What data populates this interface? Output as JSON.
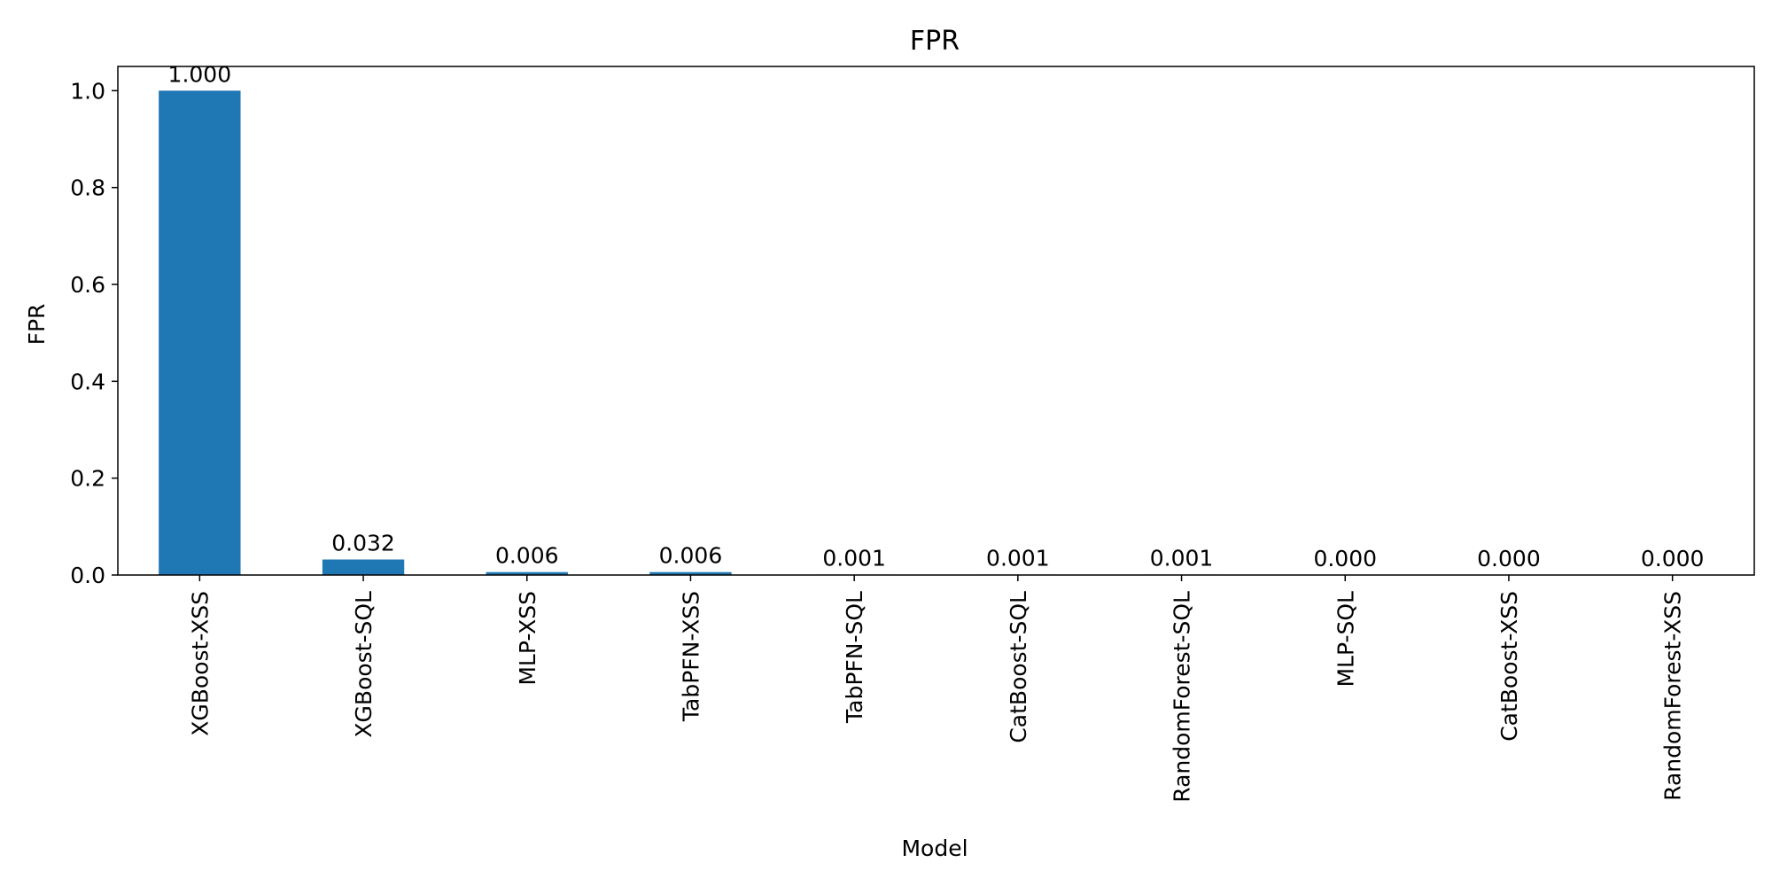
{
  "chart_data": {
    "type": "bar",
    "title": "FPR",
    "xlabel": "Model",
    "ylabel": "FPR",
    "categories": [
      "XGBoost-XSS",
      "XGBoost-SQL",
      "MLP-XSS",
      "TabPFN-XSS",
      "TabPFN-SQL",
      "CatBoost-SQL",
      "RandomForest-SQL",
      "MLP-SQL",
      "CatBoost-XSS",
      "RandomForest-XSS"
    ],
    "values": [
      1.0,
      0.032,
      0.006,
      0.006,
      0.001,
      0.001,
      0.001,
      0.0,
      0.0,
      0.0
    ],
    "data_labels": [
      "1.000",
      "0.032",
      "0.006",
      "0.006",
      "0.001",
      "0.001",
      "0.001",
      "0.000",
      "0.000",
      "0.000"
    ],
    "ylim": [
      0,
      1.05
    ],
    "yticks": [
      0.0,
      0.2,
      0.4,
      0.6,
      0.8,
      1.0
    ],
    "ytick_labels": [
      "0.0",
      "0.2",
      "0.4",
      "0.6",
      "0.8",
      "1.0"
    ],
    "bar_color": "#1f77b4",
    "grid": false,
    "legend": "none"
  }
}
